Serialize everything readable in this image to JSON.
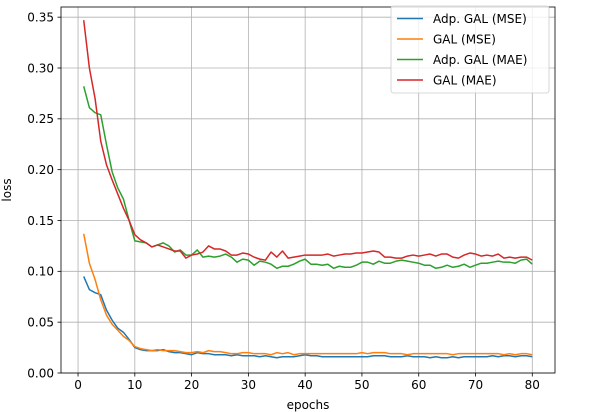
{
  "chart_data": {
    "type": "line",
    "xlabel": "epochs",
    "ylabel": "loss",
    "xlim": [
      -3,
      84
    ],
    "ylim": [
      0.0,
      0.36
    ],
    "xticks": [
      0,
      10,
      20,
      30,
      40,
      50,
      60,
      70,
      80
    ],
    "yticks": [
      0.0,
      0.05,
      0.1,
      0.15,
      0.2,
      0.25,
      0.3,
      0.35
    ],
    "ytick_labels": [
      "0.00",
      "0.05",
      "0.10",
      "0.15",
      "0.20",
      "0.25",
      "0.30",
      "0.35"
    ],
    "grid": true,
    "legend_position": "top-right",
    "x": [
      1,
      2,
      3,
      4,
      5,
      6,
      7,
      8,
      9,
      10,
      11,
      12,
      13,
      14,
      15,
      16,
      17,
      18,
      19,
      20,
      21,
      22,
      23,
      24,
      25,
      26,
      27,
      28,
      29,
      30,
      31,
      32,
      33,
      34,
      35,
      36,
      37,
      38,
      39,
      40,
      41,
      42,
      43,
      44,
      45,
      46,
      47,
      48,
      49,
      50,
      51,
      52,
      53,
      54,
      55,
      56,
      57,
      58,
      59,
      60,
      61,
      62,
      63,
      64,
      65,
      66,
      67,
      68,
      69,
      70,
      71,
      72,
      73,
      74,
      75,
      76,
      77,
      78,
      79,
      80
    ],
    "series": [
      {
        "name": "Adp. GAL (MSE)",
        "color": "#1f77b4",
        "values": [
          0.095,
          0.082,
          0.079,
          0.077,
          0.062,
          0.052,
          0.044,
          0.04,
          0.033,
          0.025,
          0.023,
          0.022,
          0.022,
          0.022,
          0.023,
          0.021,
          0.02,
          0.02,
          0.019,
          0.018,
          0.02,
          0.019,
          0.019,
          0.018,
          0.018,
          0.018,
          0.017,
          0.018,
          0.017,
          0.017,
          0.017,
          0.016,
          0.017,
          0.016,
          0.015,
          0.016,
          0.016,
          0.016,
          0.017,
          0.018,
          0.017,
          0.017,
          0.016,
          0.016,
          0.016,
          0.016,
          0.016,
          0.016,
          0.016,
          0.016,
          0.016,
          0.017,
          0.017,
          0.017,
          0.016,
          0.016,
          0.016,
          0.017,
          0.016,
          0.016,
          0.016,
          0.015,
          0.016,
          0.015,
          0.015,
          0.016,
          0.015,
          0.016,
          0.016,
          0.016,
          0.016,
          0.016,
          0.017,
          0.016,
          0.017,
          0.017,
          0.016,
          0.017,
          0.017,
          0.016
        ]
      },
      {
        "name": "GAL (MSE)",
        "color": "#ff7f0e",
        "values": [
          0.137,
          0.108,
          0.092,
          0.072,
          0.057,
          0.048,
          0.042,
          0.036,
          0.032,
          0.026,
          0.024,
          0.023,
          0.022,
          0.023,
          0.022,
          0.022,
          0.022,
          0.021,
          0.02,
          0.02,
          0.021,
          0.02,
          0.022,
          0.021,
          0.021,
          0.02,
          0.019,
          0.019,
          0.02,
          0.02,
          0.019,
          0.019,
          0.019,
          0.018,
          0.02,
          0.019,
          0.02,
          0.018,
          0.019,
          0.019,
          0.019,
          0.019,
          0.019,
          0.019,
          0.019,
          0.019,
          0.019,
          0.019,
          0.019,
          0.02,
          0.019,
          0.02,
          0.02,
          0.02,
          0.019,
          0.019,
          0.019,
          0.018,
          0.019,
          0.019,
          0.019,
          0.019,
          0.019,
          0.019,
          0.019,
          0.018,
          0.019,
          0.019,
          0.019,
          0.019,
          0.019,
          0.019,
          0.019,
          0.019,
          0.018,
          0.019,
          0.018,
          0.019,
          0.019,
          0.018
        ]
      },
      {
        "name": "Adp. GAL (MAE)",
        "color": "#2ca02c",
        "values": [
          0.282,
          0.261,
          0.256,
          0.254,
          0.225,
          0.198,
          0.182,
          0.171,
          0.15,
          0.13,
          0.129,
          0.128,
          0.124,
          0.126,
          0.128,
          0.125,
          0.119,
          0.121,
          0.116,
          0.116,
          0.121,
          0.114,
          0.115,
          0.114,
          0.115,
          0.117,
          0.114,
          0.109,
          0.112,
          0.111,
          0.106,
          0.11,
          0.109,
          0.107,
          0.103,
          0.105,
          0.105,
          0.107,
          0.11,
          0.112,
          0.107,
          0.107,
          0.106,
          0.107,
          0.103,
          0.105,
          0.104,
          0.104,
          0.106,
          0.109,
          0.109,
          0.107,
          0.11,
          0.108,
          0.108,
          0.11,
          0.111,
          0.11,
          0.109,
          0.108,
          0.106,
          0.106,
          0.103,
          0.104,
          0.106,
          0.104,
          0.105,
          0.107,
          0.104,
          0.106,
          0.108,
          0.108,
          0.109,
          0.11,
          0.109,
          0.109,
          0.108,
          0.111,
          0.112,
          0.107
        ]
      },
      {
        "name": "GAL (MAE)",
        "color": "#d62728",
        "values": [
          0.347,
          0.3,
          0.27,
          0.228,
          0.205,
          0.19,
          0.176,
          0.162,
          0.15,
          0.136,
          0.131,
          0.128,
          0.124,
          0.126,
          0.124,
          0.122,
          0.12,
          0.12,
          0.113,
          0.116,
          0.117,
          0.119,
          0.125,
          0.122,
          0.122,
          0.12,
          0.116,
          0.116,
          0.118,
          0.117,
          0.114,
          0.112,
          0.111,
          0.119,
          0.114,
          0.12,
          0.113,
          0.114,
          0.115,
          0.116,
          0.116,
          0.116,
          0.116,
          0.117,
          0.115,
          0.116,
          0.117,
          0.117,
          0.118,
          0.118,
          0.119,
          0.12,
          0.119,
          0.114,
          0.114,
          0.113,
          0.113,
          0.115,
          0.116,
          0.115,
          0.116,
          0.117,
          0.115,
          0.117,
          0.117,
          0.114,
          0.113,
          0.116,
          0.118,
          0.117,
          0.115,
          0.116,
          0.115,
          0.117,
          0.113,
          0.114,
          0.113,
          0.114,
          0.114,
          0.111
        ]
      }
    ]
  }
}
